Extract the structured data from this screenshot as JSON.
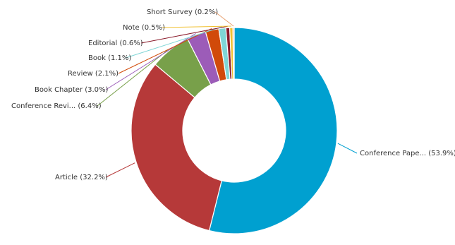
{
  "chart_data": {
    "type": "pie",
    "donut": true,
    "slices": [
      {
        "label": "Conference Pape... (53.9%)",
        "name": "Conference Paper",
        "value": 53.9,
        "color": "#00a0d0"
      },
      {
        "label": "Article (32.2%)",
        "name": "Article",
        "value": 32.2,
        "color": "#b63939"
      },
      {
        "label": "Conference Revi... (6.4%)",
        "name": "Conference Review",
        "value": 6.4,
        "color": "#78a04a"
      },
      {
        "label": "Book Chapter (3.0%)",
        "name": "Book Chapter",
        "value": 3.0,
        "color": "#9c5cb8"
      },
      {
        "label": "Review (2.1%)",
        "name": "Review",
        "value": 2.1,
        "color": "#d14a0a"
      },
      {
        "label": "Book (1.1%)",
        "name": "Book",
        "value": 1.1,
        "color": "#7fd6d6"
      },
      {
        "label": "Editorial (0.6%)",
        "name": "Editorial",
        "value": 0.6,
        "color": "#8a1a2a"
      },
      {
        "label": "Note (0.5%)",
        "name": "Note",
        "value": 0.5,
        "color": "#f0c030"
      },
      {
        "label": "Short Survey (0.2%)",
        "name": "Short Survey",
        "value": 0.2,
        "color": "#e8a070"
      }
    ]
  }
}
